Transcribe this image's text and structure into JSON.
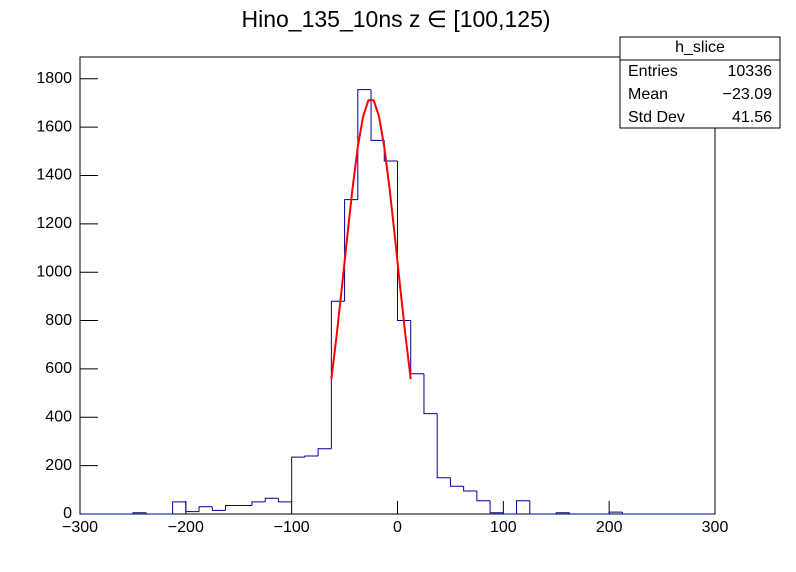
{
  "chart_data": {
    "type": "histogram",
    "title": "Hino_135_10ns z  ∈ [100,125)",
    "bins": [
      -300,
      -287.5,
      -275,
      -262.5,
      -250,
      -237.5,
      -225,
      -212.5,
      -200,
      -187.5,
      -175,
      -162.5,
      -150,
      -137.5,
      -125,
      -112.5,
      -100,
      -87.5,
      -75,
      -62.5,
      -50,
      -37.5,
      -25,
      -12.5,
      0,
      12.5,
      25,
      37.5,
      50,
      62.5,
      75,
      87.5,
      100,
      112.5,
      125,
      137.5,
      150,
      162.5,
      175,
      187.5,
      200,
      212.5,
      225,
      237.5,
      250,
      262.5,
      275,
      287.5,
      300
    ],
    "values": [
      0,
      0,
      0,
      0,
      5,
      0,
      0,
      50,
      10,
      30,
      15,
      35,
      35,
      50,
      65,
      50,
      235,
      240,
      270,
      880,
      1300,
      1755,
      1545,
      1460,
      800,
      580,
      415,
      150,
      115,
      95,
      55,
      5,
      0,
      55,
      0,
      0,
      5,
      0,
      0,
      0,
      8,
      0,
      0,
      0,
      0,
      0,
      0,
      0
    ],
    "color": "#000099",
    "fit": {
      "color": "#ff0000",
      "x": [
        -62.5,
        -57.5,
        -52.5,
        -47.5,
        -42.5,
        -37.5,
        -32.5,
        -27.5,
        -22.5,
        -17.5,
        -12.5,
        -7.5,
        -2.5,
        2.5,
        7.5,
        12.5
      ],
      "y": [
        558,
        739,
        939,
        1147,
        1346,
        1518,
        1644,
        1711,
        1711,
        1644,
        1518,
        1346,
        1147,
        939,
        739,
        558
      ]
    },
    "xlim": [
      -300,
      300
    ],
    "xticks": [
      {
        "value": -300,
        "label": "−300"
      },
      {
        "value": -200,
        "label": "−200"
      },
      {
        "value": -100,
        "label": "−100"
      },
      0,
      100,
      200,
      300
    ],
    "ylim": [
      0,
      1890
    ],
    "yticks": [
      0,
      200,
      400,
      600,
      800,
      1000,
      1200,
      1400,
      1600,
      1800
    ],
    "stats": {
      "title": "h_slice",
      "rows": [
        [
          "Entries",
          "10336"
        ],
        [
          "Mean",
          "−23.09"
        ],
        [
          "Std Dev",
          "41.56"
        ]
      ]
    }
  }
}
